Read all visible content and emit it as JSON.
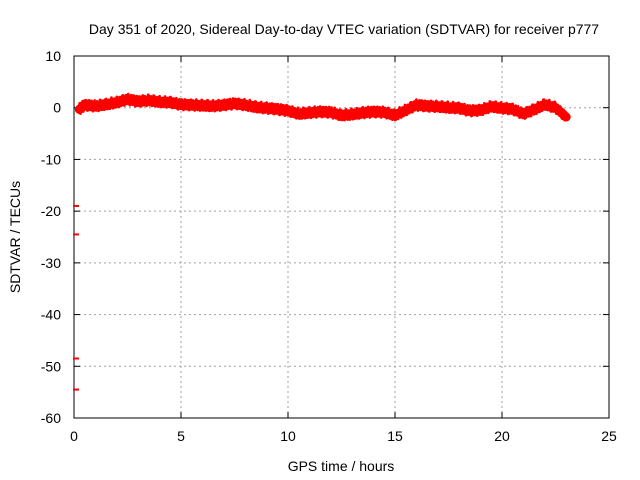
{
  "chart_data": {
    "type": "scatter",
    "title": "Day 351 of 2020, Sidereal Day-to-day VTEC variation (SDTVAR) for receiver p777",
    "xlabel": "GPS time / hours",
    "ylabel": "SDTVAR / TECUs",
    "xlim": [
      0,
      25
    ],
    "ylim": [
      -60,
      10
    ],
    "xticks": [
      0,
      5,
      10,
      15,
      20,
      25
    ],
    "yticks": [
      10,
      0,
      -10,
      -20,
      -30,
      -40,
      -50,
      -60
    ],
    "grid": true,
    "series": [
      {
        "name": "SDTVAR",
        "color": "#ff0000",
        "band_center": [
          [
            0.25,
            -0.3
          ],
          [
            0.5,
            0.5
          ],
          [
            1.0,
            0.3
          ],
          [
            1.5,
            0.6
          ],
          [
            2.0,
            1.0
          ],
          [
            2.5,
            1.6
          ],
          [
            3.0,
            1.2
          ],
          [
            3.5,
            1.4
          ],
          [
            4.0,
            1.1
          ],
          [
            4.5,
            1.0
          ],
          [
            5.0,
            0.6
          ],
          [
            5.5,
            0.5
          ],
          [
            6.0,
            0.4
          ],
          [
            6.5,
            0.3
          ],
          [
            7.0,
            0.5
          ],
          [
            7.5,
            0.8
          ],
          [
            8.0,
            0.5
          ],
          [
            8.5,
            0.1
          ],
          [
            9.0,
            -0.1
          ],
          [
            9.5,
            -0.3
          ],
          [
            10.0,
            -0.6
          ],
          [
            10.5,
            -1.2
          ],
          [
            11.0,
            -1.0
          ],
          [
            11.5,
            -0.8
          ],
          [
            12.0,
            -0.9
          ],
          [
            12.5,
            -1.5
          ],
          [
            13.0,
            -1.3
          ],
          [
            13.5,
            -1.0
          ],
          [
            14.0,
            -0.8
          ],
          [
            14.5,
            -0.9
          ],
          [
            15.0,
            -1.5
          ],
          [
            15.5,
            -0.5
          ],
          [
            16.0,
            0.5
          ],
          [
            16.5,
            0.3
          ],
          [
            17.0,
            0.2
          ],
          [
            17.5,
            0.0
          ],
          [
            18.0,
            -0.1
          ],
          [
            18.5,
            -0.6
          ],
          [
            19.0,
            -0.5
          ],
          [
            19.5,
            0.2
          ],
          [
            20.0,
            -0.1
          ],
          [
            20.5,
            -0.3
          ],
          [
            21.0,
            -1.2
          ],
          [
            21.5,
            -0.4
          ],
          [
            22.0,
            0.6
          ],
          [
            22.5,
            0.0
          ],
          [
            23.0,
            -1.8
          ]
        ],
        "band_halfwidth": 0.8,
        "outliers": [
          [
            0.0,
            -19.0
          ],
          [
            0.0,
            -24.5
          ],
          [
            0.0,
            -48.5
          ],
          [
            0.0,
            -54.5
          ]
        ]
      }
    ]
  }
}
